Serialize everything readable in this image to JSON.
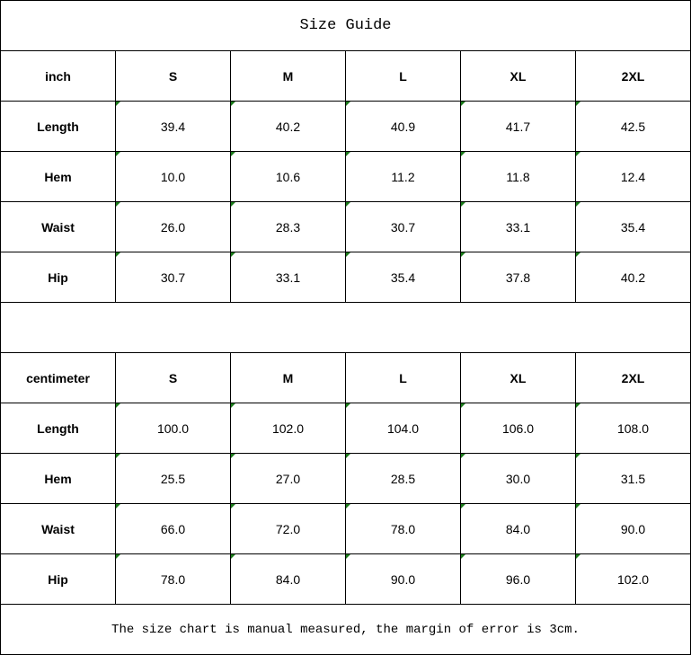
{
  "title": "Size Guide",
  "sizes": [
    "S",
    "M",
    "L",
    "XL",
    "2XL"
  ],
  "inch": {
    "unit": "inch",
    "rows": [
      {
        "label": "Length",
        "values": [
          "39.4",
          "40.2",
          "40.9",
          "41.7",
          "42.5"
        ]
      },
      {
        "label": "Hem",
        "values": [
          "10.0",
          "10.6",
          "11.2",
          "11.8",
          "12.4"
        ]
      },
      {
        "label": "Waist",
        "values": [
          "26.0",
          "28.3",
          "30.7",
          "33.1",
          "35.4"
        ]
      },
      {
        "label": "Hip",
        "values": [
          "30.7",
          "33.1",
          "35.4",
          "37.8",
          "40.2"
        ]
      }
    ]
  },
  "cm": {
    "unit": "centimeter",
    "rows": [
      {
        "label": "Length",
        "values": [
          "100.0",
          "102.0",
          "104.0",
          "106.0",
          "108.0"
        ]
      },
      {
        "label": "Hem",
        "values": [
          "25.5",
          "27.0",
          "28.5",
          "30.0",
          "31.5"
        ]
      },
      {
        "label": "Waist",
        "values": [
          "66.0",
          "72.0",
          "78.0",
          "84.0",
          "90.0"
        ]
      },
      {
        "label": "Hip",
        "values": [
          "78.0",
          "84.0",
          "90.0",
          "96.0",
          "102.0"
        ]
      }
    ]
  },
  "note": "The size chart is manual measured, the margin of error is 3cm.",
  "colors": {
    "marker": "#1a7a1a",
    "border": "#000000"
  }
}
